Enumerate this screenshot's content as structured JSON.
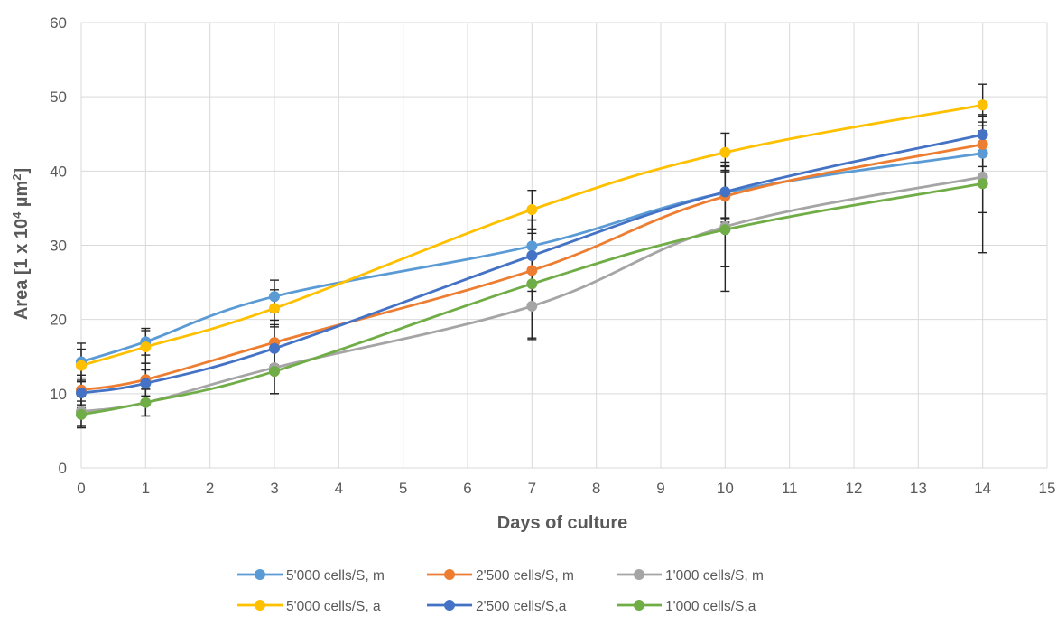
{
  "chart_data": {
    "type": "line",
    "title": "",
    "xlabel": "Days of culture",
    "ylabel": "Area [1 x 10⁴ µm²]",
    "xlim": [
      0,
      15
    ],
    "ylim": [
      0,
      60
    ],
    "xticks": [
      0,
      1,
      2,
      3,
      4,
      5,
      6,
      7,
      8,
      9,
      10,
      11,
      12,
      13,
      14,
      15
    ],
    "yticks": [
      0,
      10,
      20,
      30,
      40,
      50,
      60
    ],
    "grid": true,
    "legend_position": "bottom",
    "x": [
      0,
      1,
      3,
      7,
      10,
      14
    ],
    "series": [
      {
        "name": "5'000 cells/S, m",
        "color": "#5B9BD5",
        "values": [
          14.3,
          17.0,
          23.1,
          29.9,
          37.1,
          42.4
        ],
        "errors": [
          2.5,
          1.8,
          2.2,
          3.5,
          3.5,
          3.0
        ]
      },
      {
        "name": "2'500 cells/S, m",
        "color": "#ED7D31",
        "values": [
          10.5,
          11.9,
          16.9,
          26.6,
          36.6,
          43.6
        ],
        "errors": [
          2.0,
          2.2,
          3.0,
          5.0,
          3.5,
          3.0
        ]
      },
      {
        "name": "1'000 cells/S, m",
        "color": "#A5A5A5",
        "values": [
          7.6,
          8.8,
          13.5,
          21.8,
          32.5,
          39.2
        ],
        "errors": [
          2.0,
          1.8,
          3.5,
          4.5,
          8.7,
          4.8
        ]
      },
      {
        "name": "5'000 cells/S, a",
        "color": "#FFC000",
        "values": [
          13.8,
          16.3,
          21.5,
          34.8,
          42.5,
          48.9
        ],
        "errors": [
          2.2,
          2.2,
          2.5,
          2.6,
          2.6,
          2.8
        ]
      },
      {
        "name": "2'500 cells/S,a",
        "color": "#4472C4",
        "values": [
          10.1,
          11.4,
          16.1,
          28.6,
          37.2,
          44.9
        ],
        "errors": [
          2.0,
          1.8,
          3.2,
          4.8,
          3.5,
          2.5
        ]
      },
      {
        "name": "1'000 cells/S,a",
        "color": "#70AD47",
        "values": [
          7.2,
          8.8,
          13.0,
          24.8,
          32.1,
          38.3
        ],
        "errors": [
          1.8,
          1.8,
          3.0,
          7.3,
          5.0,
          9.3
        ]
      }
    ]
  },
  "labels": {
    "ylabel_main": "Area [1 x 10",
    "ylabel_sup1": "4",
    "ylabel_mid": " µm",
    "ylabel_sup2": "2",
    "ylabel_end": "]"
  },
  "colors": {
    "grid": "#D9D9D9",
    "axis_text": "#595959",
    "error_bar": "#262626"
  }
}
